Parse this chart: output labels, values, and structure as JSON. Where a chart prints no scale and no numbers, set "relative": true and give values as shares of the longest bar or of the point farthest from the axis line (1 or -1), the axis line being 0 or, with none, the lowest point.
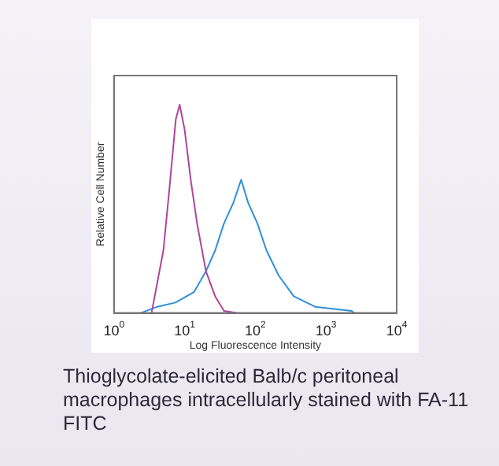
{
  "chart_data": {
    "type": "line",
    "xlabel": "Log Fluorescence Intensity",
    "ylabel": "Relative Cell Number",
    "relative": true,
    "log": "x",
    "xlim": [
      1,
      10000
    ],
    "xticks": [
      {
        "value": 1,
        "label": "10$^{0}$"
      },
      {
        "value": 10,
        "label": "10$^{1}$"
      },
      {
        "value": 100,
        "label": "10$^{2}$"
      },
      {
        "value": 1000,
        "label": "10$^{3}$"
      },
      {
        "value": 10000,
        "label": "10$^{4}$"
      }
    ],
    "grid": false,
    "legend": false,
    "marker": "none",
    "series": [
      {
        "color": "#b0449c",
        "x": [
          3.4,
          5,
          6.1,
          7.5,
          8.5,
          10,
          12.3,
          15,
          20,
          27,
          36,
          54
        ],
        "values": [
          0,
          0.3,
          0.6,
          0.93,
          1,
          0.88,
          0.63,
          0.43,
          0.2,
          0.08,
          0.01,
          0
        ]
      },
      {
        "color": "#2f8fd8",
        "x": [
          2.4,
          4.1,
          7.4,
          13.5,
          20,
          27,
          36,
          49,
          63,
          79,
          107,
          144,
          214,
          350,
          700,
          2300,
          2500
        ],
        "values": [
          0,
          0.03,
          0.05,
          0.1,
          0.2,
          0.3,
          0.43,
          0.53,
          0.64,
          0.53,
          0.43,
          0.3,
          0.18,
          0.08,
          0.03,
          0.01,
          0
        ]
      }
    ],
    "annotations": [
      "Thioglycolate-elicited Balb/c peritoneal macrophages intracellularly stained with FA-11 FITC"
    ]
  }
}
